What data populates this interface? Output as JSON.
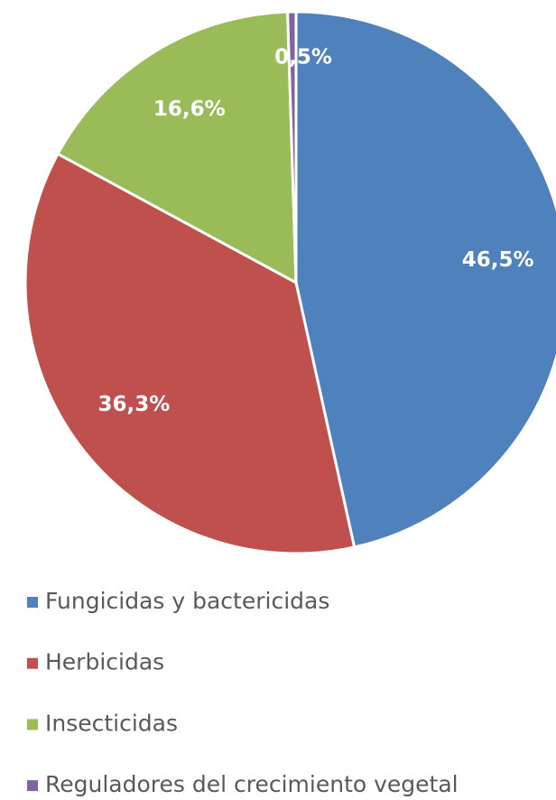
{
  "chart_data": {
    "type": "pie",
    "categories": [
      "Fungicidas y bactericidas",
      "Herbicidas",
      "Insecticidas",
      "Reguladores del crecimiento vegetal"
    ],
    "values": [
      46.5,
      36.3,
      16.6,
      0.5
    ],
    "value_labels": [
      "46,5%",
      "36,3%",
      "16,6%",
      "0,5%"
    ],
    "colors": [
      "#4f81bd",
      "#c0504d",
      "#9bbb59",
      "#8064a2"
    ],
    "legend": "bottom"
  }
}
